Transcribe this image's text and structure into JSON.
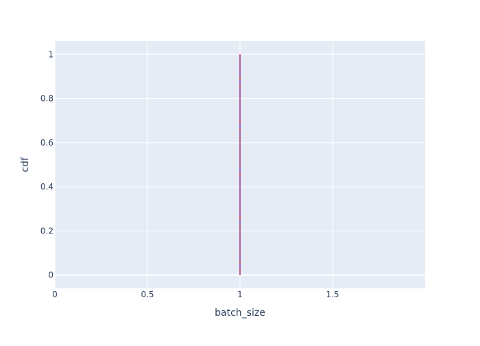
{
  "chart_data": {
    "type": "line",
    "xlabel": "batch_size",
    "ylabel": "cdf",
    "xlim": [
      0,
      2
    ],
    "ylim": [
      -0.06,
      1.06
    ],
    "x_ticks": [
      "0",
      "0.5",
      "1",
      "1.5"
    ],
    "y_ticks": [
      "0",
      "0.2",
      "0.4",
      "0.6",
      "0.8",
      "1"
    ],
    "grid": true,
    "legend": "none",
    "series": [
      {
        "color": "#636efa",
        "x": [
          1,
          1
        ],
        "y": [
          0,
          1
        ]
      },
      {
        "color": "#EF553B",
        "x": [
          1,
          1
        ],
        "y": [
          0,
          1
        ]
      }
    ],
    "colors": {
      "plot_bg": "#e5ecf6",
      "grid": "#ffffff",
      "text": "#2a3f5f"
    }
  }
}
